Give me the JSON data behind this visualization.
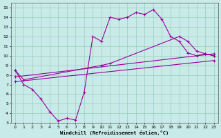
{
  "xlabel": "Windchill (Refroidissement éolien,°C)",
  "background_color": "#c8eae8",
  "grid_color": "#99ccbb",
  "line_color": "#990099",
  "xlim": [
    -0.5,
    23.5
  ],
  "ylim": [
    3,
    15.5
  ],
  "xticks": [
    0,
    1,
    2,
    3,
    4,
    5,
    6,
    7,
    8,
    9,
    10,
    11,
    12,
    13,
    14,
    15,
    16,
    17,
    18,
    19,
    20,
    21,
    22,
    23
  ],
  "yticks": [
    3,
    4,
    5,
    6,
    7,
    8,
    9,
    10,
    11,
    12,
    13,
    14,
    15
  ],
  "line1_x": [
    0,
    1,
    2,
    3,
    4,
    5,
    6,
    7,
    8,
    9,
    10,
    11,
    12,
    13,
    14,
    15,
    16,
    17,
    18,
    19,
    20,
    21,
    22,
    23
  ],
  "line1_y": [
    8.5,
    7.0,
    6.5,
    5.5,
    4.2,
    3.2,
    3.5,
    3.3,
    6.2,
    12.0,
    11.5,
    14.0,
    13.8,
    14.0,
    14.5,
    14.3,
    14.8,
    13.8,
    12.0,
    11.5,
    10.3,
    10.0,
    10.2,
    10.0
  ],
  "line2_x": [
    0,
    1,
    10,
    11,
    19,
    20,
    21,
    22,
    23
  ],
  "line2_y": [
    8.5,
    7.5,
    9.0,
    9.2,
    12.0,
    11.5,
    10.5,
    10.2,
    10.0
  ],
  "line3_x": [
    0,
    23
  ],
  "line3_y": [
    7.8,
    10.2
  ],
  "line4_x": [
    0,
    23
  ],
  "line4_y": [
    7.3,
    9.5
  ]
}
